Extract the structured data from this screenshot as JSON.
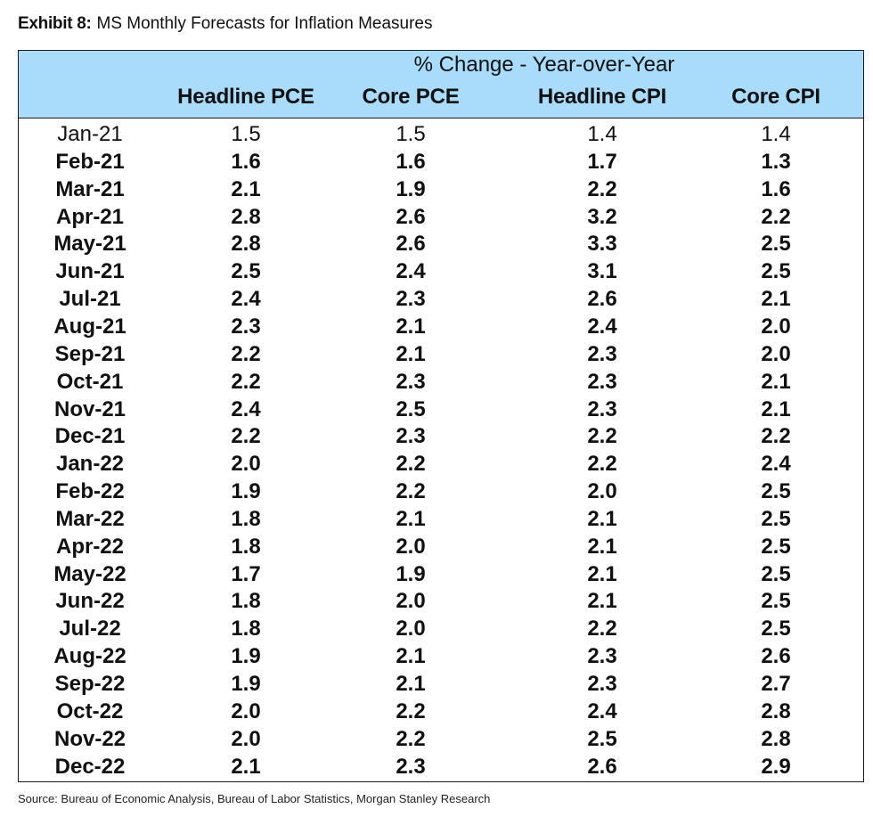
{
  "exhibit": {
    "label": "Exhibit 8:",
    "title": "MS Monthly Forecasts for Inflation Measures"
  },
  "table": {
    "group_header": "% Change - Year-over-Year",
    "columns": [
      "",
      "Headline PCE",
      "Core PCE",
      "Headline CPI",
      "Core CPI"
    ],
    "rows": [
      [
        "Jan-21",
        "1.5",
        "1.5",
        "1.4",
        "1.4"
      ],
      [
        "Feb-21",
        "1.6",
        "1.6",
        "1.7",
        "1.3"
      ],
      [
        "Mar-21",
        "2.1",
        "1.9",
        "2.2",
        "1.6"
      ],
      [
        "Apr-21",
        "2.8",
        "2.6",
        "3.2",
        "2.2"
      ],
      [
        "May-21",
        "2.8",
        "2.6",
        "3.3",
        "2.5"
      ],
      [
        "Jun-21",
        "2.5",
        "2.4",
        "3.1",
        "2.5"
      ],
      [
        "Jul-21",
        "2.4",
        "2.3",
        "2.6",
        "2.1"
      ],
      [
        "Aug-21",
        "2.3",
        "2.1",
        "2.4",
        "2.0"
      ],
      [
        "Sep-21",
        "2.2",
        "2.1",
        "2.3",
        "2.0"
      ],
      [
        "Oct-21",
        "2.2",
        "2.3",
        "2.3",
        "2.1"
      ],
      [
        "Nov-21",
        "2.4",
        "2.5",
        "2.3",
        "2.1"
      ],
      [
        "Dec-21",
        "2.2",
        "2.3",
        "2.2",
        "2.2"
      ],
      [
        "Jan-22",
        "2.0",
        "2.2",
        "2.2",
        "2.4"
      ],
      [
        "Feb-22",
        "1.9",
        "2.2",
        "2.0",
        "2.5"
      ],
      [
        "Mar-22",
        "1.8",
        "2.1",
        "2.1",
        "2.5"
      ],
      [
        "Apr-22",
        "1.8",
        "2.0",
        "2.1",
        "2.5"
      ],
      [
        "May-22",
        "1.7",
        "1.9",
        "2.1",
        "2.5"
      ],
      [
        "Jun-22",
        "1.8",
        "2.0",
        "2.1",
        "2.5"
      ],
      [
        "Jul-22",
        "1.8",
        "2.0",
        "2.2",
        "2.5"
      ],
      [
        "Aug-22",
        "1.9",
        "2.1",
        "2.3",
        "2.6"
      ],
      [
        "Sep-22",
        "1.9",
        "2.1",
        "2.3",
        "2.7"
      ],
      [
        "Oct-22",
        "2.0",
        "2.2",
        "2.4",
        "2.8"
      ],
      [
        "Nov-22",
        "2.0",
        "2.2",
        "2.5",
        "2.8"
      ],
      [
        "Dec-22",
        "2.1",
        "2.3",
        "2.6",
        "2.9"
      ]
    ]
  },
  "source": "Source: Bureau of Economic Analysis, Bureau of Labor Statistics, Morgan Stanley Research",
  "colors": {
    "header_background": "#a9dcfb",
    "border": "#1a1a1a"
  }
}
